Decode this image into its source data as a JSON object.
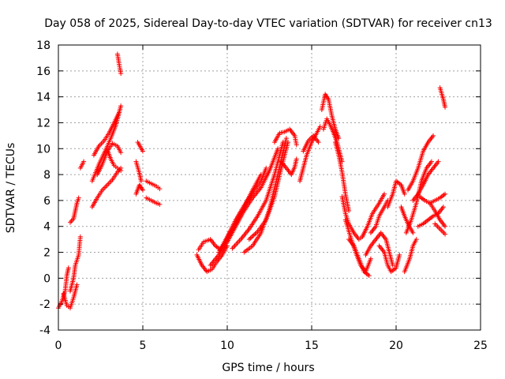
{
  "chart_data": {
    "type": "scatter",
    "title": "Day 058 of 2025, Sidereal Day-to-day VTEC variation (SDTVAR) for receiver cn13",
    "xlabel": "GPS time / hours",
    "ylabel": "SDTVAR / TECUs",
    "xlim": [
      0,
      25
    ],
    "ylim": [
      -4,
      18
    ],
    "xticks": [
      0,
      5,
      10,
      15,
      20,
      25
    ],
    "yticks": [
      -4,
      -2,
      0,
      2,
      4,
      6,
      8,
      10,
      12,
      14,
      16,
      18
    ],
    "grid": true,
    "marker": "+",
    "color": "#ff0000",
    "tracks": [
      {
        "x": [
          0.0,
          0.2,
          0.4,
          0.5,
          0.6
        ],
        "y": [
          -2.3,
          -1.8,
          -1.0,
          0.2,
          0.8
        ]
      },
      {
        "x": [
          0.3,
          0.5,
          0.7,
          0.9,
          1.1
        ],
        "y": [
          -1.2,
          -2.1,
          -2.3,
          -1.5,
          -0.5
        ]
      },
      {
        "x": [
          0.7,
          0.9,
          1.0,
          1.2,
          1.3
        ],
        "y": [
          -1.0,
          0.0,
          1.0,
          1.8,
          3.2
        ]
      },
      {
        "x": [
          0.7,
          0.9,
          1.0,
          1.1,
          1.2
        ],
        "y": [
          4.3,
          4.6,
          5.2,
          5.8,
          6.2
        ]
      },
      {
        "x": [
          1.3,
          1.5
        ],
        "y": [
          8.5,
          9.0
        ]
      },
      {
        "x": [
          2.0,
          2.3,
          2.6,
          2.9,
          3.2,
          3.5,
          3.7
        ],
        "y": [
          5.5,
          6.2,
          6.8,
          7.2,
          7.6,
          8.2,
          8.5
        ]
      },
      {
        "x": [
          2.0,
          2.4,
          2.8,
          3.1,
          3.4,
          3.7
        ],
        "y": [
          7.5,
          8.8,
          9.9,
          10.8,
          11.8,
          13.3
        ]
      },
      {
        "x": [
          2.1,
          2.4,
          2.7,
          3.0,
          3.3,
          3.6
        ],
        "y": [
          9.5,
          10.2,
          10.6,
          11.2,
          12.0,
          12.8
        ]
      },
      {
        "x": [
          2.3,
          2.6,
          2.9,
          3.2,
          3.5,
          3.7
        ],
        "y": [
          8.0,
          8.8,
          9.8,
          10.4,
          10.2,
          9.7
        ]
      },
      {
        "x": [
          2.9,
          3.1,
          3.3,
          3.5,
          3.7
        ],
        "y": [
          9.9,
          9.2,
          8.7,
          8.5,
          8.3
        ]
      },
      {
        "x": [
          3.5,
          3.6,
          3.7
        ],
        "y": [
          17.3,
          16.5,
          15.8
        ]
      },
      {
        "x": [
          4.6,
          4.8,
          4.9
        ],
        "y": [
          9.0,
          8.1,
          7.5
        ]
      },
      {
        "x": [
          4.6,
          4.8,
          5.0
        ],
        "y": [
          6.5,
          7.2,
          6.8
        ]
      },
      {
        "x": [
          5.2,
          5.5,
          5.8,
          6.0
        ],
        "y": [
          7.5,
          7.3,
          7.1,
          6.9
        ]
      },
      {
        "x": [
          5.2,
          5.5,
          5.8,
          6.0
        ],
        "y": [
          6.2,
          6.0,
          5.8,
          5.7
        ]
      },
      {
        "x": [
          8.2,
          8.5,
          8.8,
          9.1,
          9.4,
          9.7,
          10.0
        ],
        "y": [
          1.8,
          1.0,
          0.5,
          0.7,
          1.3,
          1.8,
          2.5
        ]
      },
      {
        "x": [
          8.3,
          8.6,
          9.0,
          9.3,
          9.6,
          9.9,
          10.2
        ],
        "y": [
          2.2,
          2.8,
          3.0,
          2.5,
          2.2,
          2.8,
          3.6
        ]
      },
      {
        "x": [
          9.0,
          9.5,
          10.0,
          10.5,
          11.0,
          11.5,
          12.0
        ],
        "y": [
          1.0,
          1.8,
          2.8,
          4.2,
          5.5,
          6.8,
          8.0
        ]
      },
      {
        "x": [
          9.5,
          10.0,
          10.5,
          11.0,
          11.5,
          12.0,
          12.3
        ],
        "y": [
          2.0,
          3.2,
          4.5,
          5.6,
          6.6,
          7.5,
          8.5
        ]
      },
      {
        "x": [
          10.0,
          10.5,
          11.0,
          11.5,
          12.0,
          12.5,
          13.0
        ],
        "y": [
          2.8,
          4.0,
          5.2,
          6.2,
          7.0,
          8.3,
          10.0
        ]
      },
      {
        "x": [
          10.3,
          10.8,
          11.3,
          11.8,
          12.3,
          12.8,
          13.3
        ],
        "y": [
          2.3,
          3.0,
          3.8,
          4.8,
          6.0,
          8.0,
          10.5
        ]
      },
      {
        "x": [
          11.0,
          11.5,
          12.0,
          12.5,
          13.0,
          13.5
        ],
        "y": [
          2.0,
          2.5,
          3.5,
          5.3,
          8.0,
          10.8
        ]
      },
      {
        "x": [
          11.3,
          11.8,
          12.3,
          12.8,
          13.2,
          13.6
        ],
        "y": [
          3.0,
          3.6,
          4.5,
          6.3,
          8.5,
          10.5
        ]
      },
      {
        "x": [
          12.8,
          13.1,
          13.4,
          13.7,
          14.0,
          14.1
        ],
        "y": [
          10.5,
          11.2,
          11.3,
          11.5,
          11.0,
          10.3
        ]
      },
      {
        "x": [
          13.2,
          13.5,
          13.8,
          14.0,
          14.1
        ],
        "y": [
          9.0,
          8.5,
          8.0,
          8.6,
          9.2
        ]
      },
      {
        "x": [
          14.3,
          14.5,
          14.7,
          15.0,
          15.3,
          15.5
        ],
        "y": [
          7.5,
          8.5,
          9.5,
          10.5,
          11.2,
          11.7
        ]
      },
      {
        "x": [
          14.5,
          14.8,
          15.1,
          15.4
        ],
        "y": [
          9.8,
          10.6,
          11.0,
          10.5
        ]
      },
      {
        "x": [
          15.6,
          15.8,
          16.0,
          16.2,
          16.4,
          16.6
        ],
        "y": [
          13.0,
          14.2,
          13.8,
          12.5,
          11.5,
          10.8
        ]
      },
      {
        "x": [
          15.7,
          15.9,
          16.1,
          16.3,
          16.5,
          16.8
        ],
        "y": [
          11.5,
          12.3,
          11.8,
          11.2,
          10.5,
          9.0
        ]
      },
      {
        "x": [
          16.4,
          16.6,
          16.8,
          17.0,
          17.2
        ],
        "y": [
          10.5,
          9.5,
          8.2,
          6.5,
          5.2
        ]
      },
      {
        "x": [
          16.8,
          17.0,
          17.2,
          17.5,
          17.8,
          18.0
        ],
        "y": [
          6.3,
          5.0,
          4.2,
          3.5,
          3.0,
          3.2
        ]
      },
      {
        "x": [
          17.0,
          17.3,
          17.6,
          17.9,
          18.2,
          18.5
        ],
        "y": [
          4.5,
          3.2,
          2.0,
          1.0,
          0.5,
          1.5
        ]
      },
      {
        "x": [
          17.2,
          17.5,
          17.8,
          18.1,
          18.4
        ],
        "y": [
          3.0,
          2.5,
          1.5,
          0.5,
          0.2
        ]
      },
      {
        "x": [
          18.0,
          18.3,
          18.6,
          19.0,
          19.3
        ],
        "y": [
          3.2,
          4.0,
          5.0,
          5.8,
          6.5
        ]
      },
      {
        "x": [
          18.5,
          18.8,
          19.0,
          19.3,
          19.5
        ],
        "y": [
          3.5,
          4.0,
          4.8,
          5.5,
          6.0
        ]
      },
      {
        "x": [
          18.2,
          18.5,
          18.8,
          19.1,
          19.4,
          19.6,
          19.8
        ],
        "y": [
          1.8,
          2.5,
          3.0,
          3.5,
          3.0,
          2.0,
          1.0
        ]
      },
      {
        "x": [
          19.0,
          19.3,
          19.5,
          19.7,
          20.0,
          20.2
        ],
        "y": [
          2.5,
          2.0,
          1.0,
          0.5,
          0.8,
          1.8
        ]
      },
      {
        "x": [
          19.5,
          19.8,
          20.0,
          20.3,
          20.5
        ],
        "y": [
          5.5,
          6.5,
          7.5,
          7.2,
          6.5
        ]
      },
      {
        "x": [
          20.3,
          20.5,
          20.7,
          21.0
        ],
        "y": [
          5.5,
          4.8,
          4.2,
          3.5
        ]
      },
      {
        "x": [
          20.5,
          20.8,
          21.0,
          21.2
        ],
        "y": [
          0.5,
          1.5,
          2.5,
          3.0
        ]
      },
      {
        "x": [
          20.6,
          20.9,
          21.2,
          21.5,
          21.8,
          22.1
        ],
        "y": [
          3.5,
          4.5,
          5.8,
          7.5,
          8.5,
          9.0
        ]
      },
      {
        "x": [
          20.7,
          21.0,
          21.3,
          21.6,
          21.9,
          22.2
        ],
        "y": [
          6.8,
          7.5,
          8.5,
          9.8,
          10.5,
          11.0
        ]
      },
      {
        "x": [
          21.0,
          21.3,
          21.6,
          21.9,
          22.2,
          22.5
        ],
        "y": [
          6.0,
          6.5,
          7.2,
          8.0,
          8.5,
          9.0
        ]
      },
      {
        "x": [
          21.3,
          21.6,
          21.9,
          22.2,
          22.5,
          22.8
        ],
        "y": [
          4.0,
          4.2,
          4.5,
          4.8,
          5.0,
          5.5
        ]
      },
      {
        "x": [
          21.4,
          21.7,
          22.0,
          22.3,
          22.6,
          22.9
        ],
        "y": [
          6.3,
          6.0,
          5.8,
          6.0,
          6.2,
          6.5
        ]
      },
      {
        "x": [
          22.0,
          22.3,
          22.6,
          22.9
        ],
        "y": [
          5.8,
          5.2,
          4.5,
          4.0
        ]
      },
      {
        "x": [
          22.3,
          22.6,
          22.9
        ],
        "y": [
          4.2,
          3.8,
          3.4
        ]
      },
      {
        "x": [
          22.6,
          22.8,
          22.9
        ],
        "y": [
          14.7,
          13.8,
          13.2
        ]
      },
      {
        "x": [
          4.7,
          5.0
        ],
        "y": [
          10.5,
          9.8
        ]
      }
    ]
  }
}
